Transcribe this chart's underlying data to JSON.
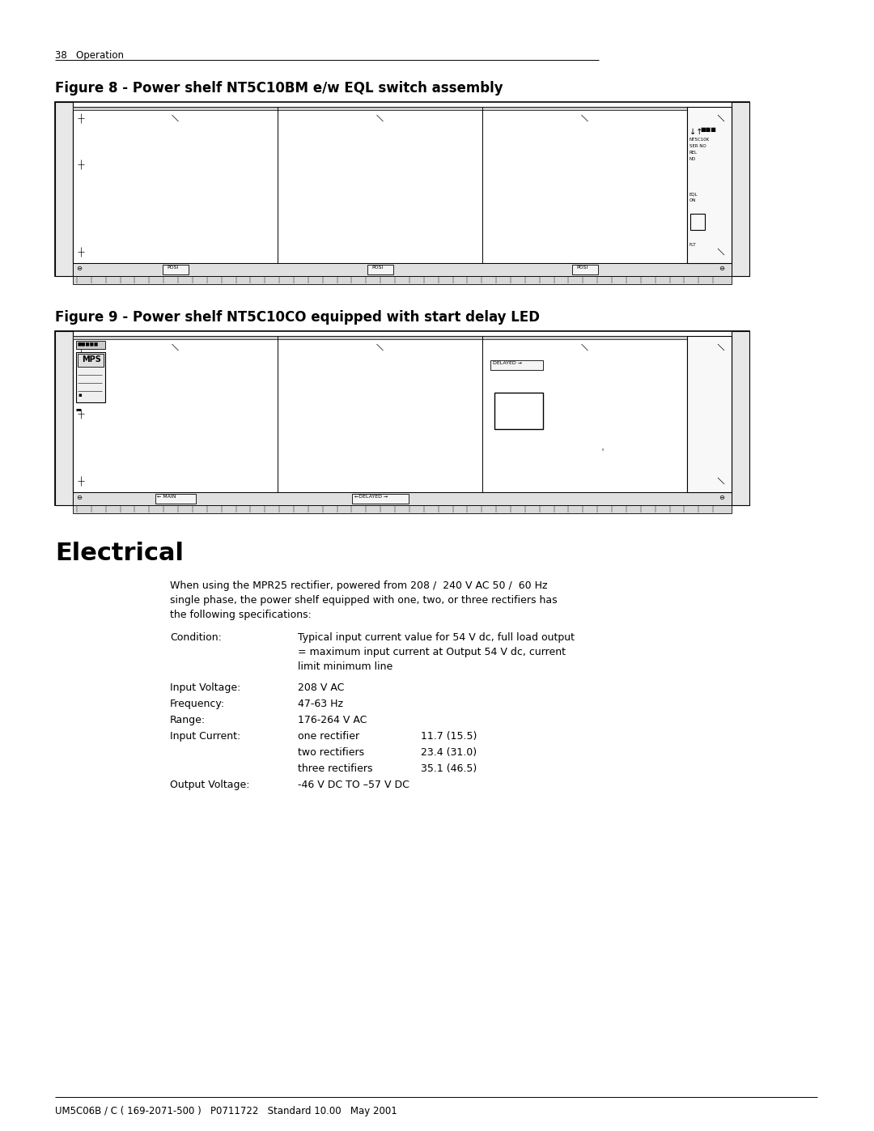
{
  "page_header": "38   Operation",
  "fig8_title": "Figure 8 - Power shelf NT5C10BM e/w EQL switch assembly",
  "fig9_title": "Figure 9 - Power shelf NT5C10CO equipped with start delay LED",
  "section_title": "Electrical",
  "para1_line1": "When using the MPR25 rectifier, powered from 208 /  240 V AC 50 /  60 Hz",
  "para1_line2": "single phase, the power shelf equipped with one, two, or three rectifiers has",
  "para1_line3": "the following specifications:",
  "cond_label": "Condition:",
  "cond_val1": "Typical input current value for 54 V dc, full load output",
  "cond_val2": "= maximum input current at Output 54 V dc, current",
  "cond_val3": "limit minimum line",
  "spec_labels": [
    "Input Voltage:",
    "Frequency:",
    "Range:",
    "Input Current:"
  ],
  "spec_vals": [
    "208 V AC",
    "47-63 Hz",
    "176-264 V AC",
    ""
  ],
  "curr_lines": [
    [
      "one rectifier",
      "11.7 (15.5)"
    ],
    [
      "two rectifiers",
      "23.4 (31.0)"
    ],
    [
      "three rectifiers",
      "35.1 (46.5)"
    ]
  ],
  "out_label": "Output Voltage:",
  "out_val": "-46 V DC TO –57 V DC",
  "footer": "UM5C06B / C ( 169-2071-500 )   P0711722   Standard 10.00   May 2001",
  "bg_color": "#ffffff",
  "lc": "#000000"
}
